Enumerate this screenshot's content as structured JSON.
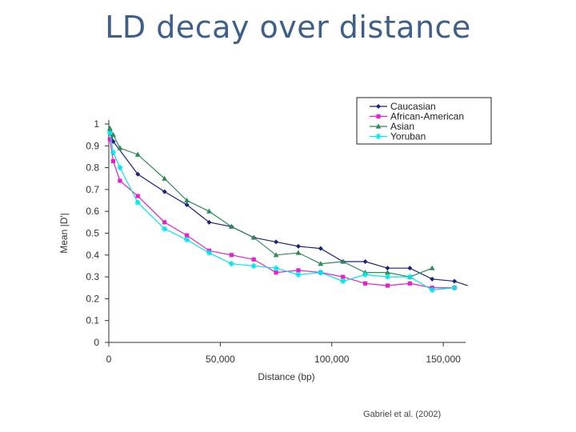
{
  "slide": {
    "title": "LD decay over distance",
    "credit": "Gabriel et al. (2002)"
  },
  "chart_data": {
    "type": "line",
    "xlabel": "Distance (bp)",
    "ylabel": "Mean |D'|",
    "xlim": [
      0,
      160000
    ],
    "ylim": [
      0,
      1
    ],
    "x_ticks": [
      0,
      50000,
      100000,
      150000
    ],
    "x_tick_labels": [
      "0",
      "50,000",
      "100,000",
      "150,000"
    ],
    "y_ticks": [
      0,
      0.1,
      0.2,
      0.3,
      0.4,
      0.5,
      0.6,
      0.7,
      0.8,
      0.9,
      1
    ],
    "y_tick_labels": [
      "0",
      "0.1",
      "0.2",
      "0.3",
      "0.4",
      "0.5",
      "0.6",
      "0.7",
      "0.8",
      "0.9",
      "1"
    ],
    "grid": false,
    "legend_position": "top-right",
    "series": [
      {
        "name": "Caucasian",
        "color": "#1a237e",
        "marker": "diamond",
        "points": [
          [
            500,
            0.97
          ],
          [
            2000,
            0.92
          ],
          [
            13000,
            0.77
          ],
          [
            25000,
            0.69
          ],
          [
            35000,
            0.63
          ],
          [
            45000,
            0.55
          ],
          [
            55000,
            0.53
          ],
          [
            65000,
            0.48
          ],
          [
            75000,
            0.46
          ],
          [
            85000,
            0.44
          ],
          [
            95000,
            0.43
          ],
          [
            105000,
            0.37
          ],
          [
            115000,
            0.37
          ],
          [
            125000,
            0.34
          ],
          [
            135000,
            0.34
          ],
          [
            145000,
            0.29
          ],
          [
            155000,
            0.28
          ],
          [
            161000,
            0.26
          ]
        ]
      },
      {
        "name": "African-American",
        "color": "#e91ecc",
        "marker": "square",
        "points": [
          [
            500,
            0.93
          ],
          [
            2000,
            0.83
          ],
          [
            5000,
            0.74
          ],
          [
            13000,
            0.67
          ],
          [
            25000,
            0.55
          ],
          [
            35000,
            0.49
          ],
          [
            45000,
            0.42
          ],
          [
            55000,
            0.4
          ],
          [
            65000,
            0.38
          ],
          [
            75000,
            0.32
          ],
          [
            85000,
            0.33
          ],
          [
            95000,
            0.32
          ],
          [
            105000,
            0.3
          ],
          [
            115000,
            0.27
          ],
          [
            125000,
            0.26
          ],
          [
            135000,
            0.27
          ],
          [
            145000,
            0.25
          ],
          [
            155000,
            0.25
          ]
        ]
      },
      {
        "name": "Asian",
        "color": "#2e8b57",
        "marker": "triangle",
        "points": [
          [
            500,
            0.98
          ],
          [
            2000,
            0.95
          ],
          [
            5000,
            0.89
          ],
          [
            13000,
            0.86
          ],
          [
            25000,
            0.75
          ],
          [
            35000,
            0.65
          ],
          [
            45000,
            0.6
          ],
          [
            55000,
            0.53
          ],
          [
            65000,
            0.48
          ],
          [
            75000,
            0.4
          ],
          [
            85000,
            0.41
          ],
          [
            95000,
            0.36
          ],
          [
            105000,
            0.37
          ],
          [
            115000,
            0.32
          ],
          [
            125000,
            0.32
          ],
          [
            135000,
            0.3
          ],
          [
            145000,
            0.34
          ]
        ]
      },
      {
        "name": "Yoruban",
        "color": "#00e5ee",
        "marker": "star",
        "points": [
          [
            500,
            0.96
          ],
          [
            2000,
            0.87
          ],
          [
            5000,
            0.8
          ],
          [
            13000,
            0.64
          ],
          [
            25000,
            0.52
          ],
          [
            35000,
            0.47
          ],
          [
            45000,
            0.41
          ],
          [
            55000,
            0.36
          ],
          [
            65000,
            0.35
          ],
          [
            75000,
            0.34
          ],
          [
            85000,
            0.31
          ],
          [
            95000,
            0.32
          ],
          [
            105000,
            0.28
          ],
          [
            115000,
            0.31
          ],
          [
            125000,
            0.3
          ],
          [
            135000,
            0.3
          ],
          [
            145000,
            0.24
          ],
          [
            155000,
            0.25
          ]
        ]
      }
    ]
  }
}
